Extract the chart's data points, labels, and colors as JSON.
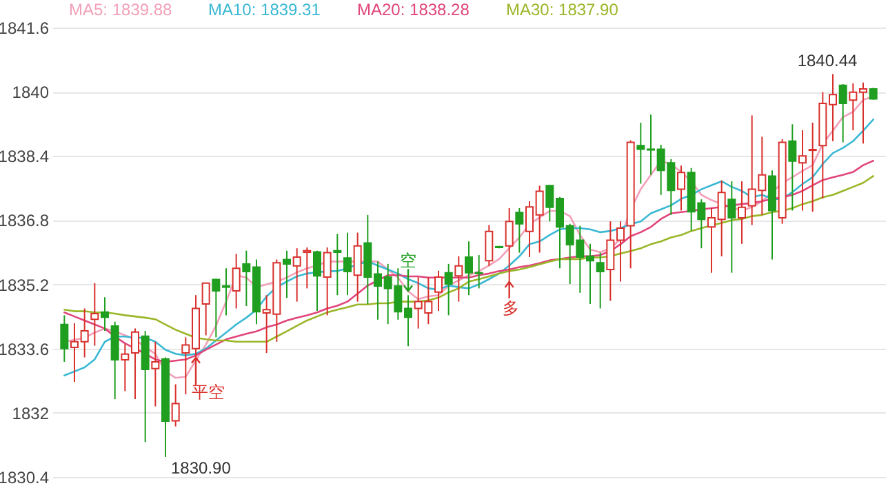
{
  "chart_data": {
    "type": "candlestick",
    "categories": [
      null,
      null,
      null,
      null,
      null,
      null,
      null,
      null,
      null,
      null,
      null,
      null,
      null,
      null,
      null,
      null,
      null,
      null,
      null,
      null,
      null,
      null,
      null,
      null,
      null,
      null,
      null,
      null,
      null,
      null,
      null,
      null,
      null,
      null,
      null,
      null,
      null,
      null,
      null,
      null,
      null,
      null,
      null,
      null,
      null,
      null,
      null,
      null,
      null,
      null,
      null,
      null,
      null,
      null,
      null,
      null,
      null,
      null,
      null,
      null,
      null,
      null,
      null,
      null,
      null,
      null,
      null,
      null,
      null,
      null,
      null,
      null,
      null,
      null,
      null,
      null,
      null,
      null,
      null,
      null,
      null
    ],
    "ohlc": [
      [
        1834.2,
        1834.43,
        1833.27,
        1833.6
      ],
      [
        1833.63,
        1834.23,
        1832.77,
        1833.77
      ],
      [
        1833.77,
        1834.6,
        1833.38,
        1834.04
      ],
      [
        1834.33,
        1835.23,
        1833.67,
        1834.47
      ],
      [
        1834.51,
        1834.88,
        1834.04,
        1834.38
      ],
      [
        1834.16,
        1834.27,
        1832.34,
        1833.32
      ],
      [
        1833.32,
        1833.71,
        1832.54,
        1833.46
      ],
      [
        1833.49,
        1834.1,
        1832.34,
        1834.01
      ],
      [
        1833.91,
        1834.04,
        1831.27,
        1833.08
      ],
      [
        1833.1,
        1833.77,
        1832.16,
        1833.27
      ],
      [
        1833.34,
        1833.38,
        1830.9,
        1831.79
      ],
      [
        1831.8,
        1832.71,
        1831.66,
        1832.23
      ],
      [
        1833.49,
        1833.88,
        1832.46,
        1833.69
      ],
      [
        1833.6,
        1834.93,
        1832.93,
        1834.6
      ],
      [
        1834.71,
        1835.23,
        1833.93,
        1835.23
      ],
      [
        1835.32,
        1835.34,
        1833.88,
        1835.04
      ],
      [
        1835.16,
        1835.6,
        1834.43,
        1835.13
      ],
      [
        1835.04,
        1835.96,
        1834.6,
        1835.6
      ],
      [
        1835.71,
        1836.04,
        1834.66,
        1835.52
      ],
      [
        1835.63,
        1835.82,
        1834.21,
        1834.52
      ],
      [
        1834.49,
        1834.93,
        1833.49,
        1834.57
      ],
      [
        1834.46,
        1835.82,
        1833.77,
        1835.74
      ],
      [
        1835.82,
        1836.04,
        1834.86,
        1835.71
      ],
      [
        1835.66,
        1836.1,
        1834.77,
        1835.88
      ],
      [
        1836.0,
        1836.12,
        1835.1,
        1836.04
      ],
      [
        1836.01,
        1836.04,
        1834.54,
        1835.41
      ],
      [
        1835.38,
        1836.12,
        1834.43,
        1835.99
      ],
      [
        1836.04,
        1836.46,
        1834.93,
        1836.0
      ],
      [
        1835.86,
        1836.49,
        1834.93,
        1835.52
      ],
      [
        1835.43,
        1836.49,
        1834.77,
        1836.16
      ],
      [
        1836.23,
        1836.93,
        1834.71,
        1835.38
      ],
      [
        1835.46,
        1835.77,
        1834.32,
        1835.16
      ],
      [
        1835.38,
        1835.71,
        1834.21,
        1835.1
      ],
      [
        1835.16,
        1835.6,
        1834.32,
        1834.52
      ],
      [
        1834.6,
        1834.93,
        1833.66,
        1834.38
      ],
      [
        1834.6,
        1835.38,
        1834.1,
        1834.77
      ],
      [
        1834.49,
        1835.38,
        1834.21,
        1834.77
      ],
      [
        1835.01,
        1835.54,
        1834.54,
        1835.38
      ],
      [
        1835.49,
        1835.71,
        1834.43,
        1835.21
      ],
      [
        1835.41,
        1835.9,
        1834.77,
        1835.66
      ],
      [
        1835.88,
        1836.27,
        1834.93,
        1835.49
      ],
      [
        1835.49,
        1835.93,
        1835.1,
        1835.47
      ],
      [
        1835.79,
        1836.68,
        1835.66,
        1836.52
      ],
      [
        1836.14,
        1836.16,
        1836.1,
        1836.12
      ],
      [
        1836.16,
        1837.1,
        1835.16,
        1836.77
      ],
      [
        1836.99,
        1837.1,
        1835.99,
        1836.71
      ],
      [
        1836.52,
        1837.27,
        1835.88,
        1837.13
      ],
      [
        1836.93,
        1837.66,
        1835.99,
        1837.52
      ],
      [
        1837.66,
        1837.68,
        1836.77,
        1837.12
      ],
      [
        1837.34,
        1837.38,
        1835.6,
        1836.63
      ],
      [
        1836.66,
        1836.71,
        1835.21,
        1836.19
      ],
      [
        1836.3,
        1836.66,
        1834.99,
        1835.88
      ],
      [
        1835.9,
        1836.21,
        1834.71,
        1835.79
      ],
      [
        1835.74,
        1835.99,
        1834.6,
        1835.52
      ],
      [
        1835.57,
        1836.77,
        1834.79,
        1836.3
      ],
      [
        1836.3,
        1836.77,
        1835.27,
        1836.6
      ],
      [
        1836.66,
        1838.79,
        1835.6,
        1838.74
      ],
      [
        1838.66,
        1839.23,
        1837.71,
        1838.57
      ],
      [
        1838.57,
        1839.43,
        1837.93,
        1838.55
      ],
      [
        1838.57,
        1838.68,
        1837.43,
        1838.04
      ],
      [
        1838.23,
        1838.32,
        1836.93,
        1837.54
      ],
      [
        1837.57,
        1838.16,
        1837.04,
        1837.99
      ],
      [
        1837.99,
        1838.1,
        1836.54,
        1837.01
      ],
      [
        1837.23,
        1837.32,
        1836.1,
        1836.82
      ],
      [
        1836.63,
        1837.1,
        1835.49,
        1836.86
      ],
      [
        1836.82,
        1837.79,
        1835.9,
        1837.49
      ],
      [
        1837.32,
        1837.77,
        1835.49,
        1836.86
      ],
      [
        1836.86,
        1837.77,
        1836.21,
        1837.12
      ],
      [
        1837.16,
        1839.41,
        1836.68,
        1837.57
      ],
      [
        1837.54,
        1838.88,
        1836.93,
        1837.93
      ],
      [
        1837.9,
        1838.04,
        1835.82,
        1837.04
      ],
      [
        1836.86,
        1838.82,
        1836.71,
        1838.74
      ],
      [
        1838.77,
        1839.19,
        1837.04,
        1838.27
      ],
      [
        1838.23,
        1839.04,
        1837.04,
        1838.4
      ],
      [
        1838.54,
        1839.23,
        1837.01,
        1838.56
      ],
      [
        1838.66,
        1839.99,
        1837.34,
        1839.71
      ],
      [
        1839.68,
        1840.44,
        1838.77,
        1839.93
      ],
      [
        1840.16,
        1840.19,
        1838.74,
        1839.71
      ],
      [
        1839.79,
        1840.21,
        1839.04,
        1839.99
      ],
      [
        1839.99,
        1840.23,
        1838.71,
        1840.07
      ],
      [
        1840.07,
        1840.1,
        1839.8,
        1839.82
      ]
    ],
    "colors": [
      "#1f9e1f",
      "#d8302c",
      "#d8302c",
      "#d8302c",
      "#1f9e1f",
      "#1f9e1f",
      "#d8302c",
      "#d8302c",
      "#1f9e1f",
      "#d8302c",
      "#1f9e1f",
      "#d8302c",
      "#d8302c",
      "#d8302c",
      "#d8302c",
      "#1f9e1f",
      "#1f9e1f",
      "#d8302c",
      "#1f9e1f",
      "#1f9e1f",
      "#d8302c",
      "#d8302c",
      "#1f9e1f",
      "#d8302c",
      "#d8302c",
      "#1f9e1f",
      "#d8302c",
      "#1f9e1f",
      "#1f9e1f",
      "#d8302c",
      "#1f9e1f",
      "#1f9e1f",
      "#1f9e1f",
      "#1f9e1f",
      "#1f9e1f",
      "#d8302c",
      "#d8302c",
      "#d8302c",
      "#1f9e1f",
      "#d8302c",
      "#1f9e1f",
      "#1f9e1f",
      "#d8302c",
      "#1f9e1f",
      "#d8302c",
      "#1f9e1f",
      "#d8302c",
      "#d8302c",
      "#1f9e1f",
      "#1f9e1f",
      "#1f9e1f",
      "#1f9e1f",
      "#1f9e1f",
      "#1f9e1f",
      "#d8302c",
      "#d8302c",
      "#d8302c",
      "#1f9e1f",
      "#1f9e1f",
      "#1f9e1f",
      "#1f9e1f",
      "#d8302c",
      "#1f9e1f",
      "#1f9e1f",
      "#d8302c",
      "#d8302c",
      "#1f9e1f",
      "#d8302c",
      "#d8302c",
      "#d8302c",
      "#1f9e1f",
      "#d8302c",
      "#1f9e1f",
      "#d8302c",
      "#d8302c",
      "#d8302c",
      "#d8302c",
      "#1f9e1f",
      "#d8302c",
      "#d8302c",
      "#1f9e1f"
    ],
    "series": [
      {
        "name": "MA5: 1839.88",
        "color": "#f2a0b8",
        "type": "line",
        "values": [
          1833.77,
          1833.82,
          1833.87,
          1834.0,
          1834.1,
          1834.03,
          1833.93,
          1833.83,
          1833.63,
          1833.47,
          1833.03,
          1832.87,
          1832.9,
          1833.3,
          1833.7,
          1834.17,
          1834.77,
          1835.43,
          1835.37,
          1835.13,
          1835.2,
          1835.27,
          1835.37,
          1835.5,
          1835.6,
          1835.67,
          1835.77,
          1835.77,
          1835.77,
          1835.77,
          1835.77,
          1835.77,
          1835.57,
          1835.37,
          1835.03,
          1834.83,
          1834.9,
          1834.93,
          1835.17,
          1835.3,
          1835.43,
          1835.53,
          1835.67,
          1835.83,
          1836.1,
          1836.37,
          1836.7,
          1836.87,
          1837.03,
          1837.03,
          1836.9,
          1836.43,
          1836.07,
          1836.0,
          1836.1,
          1836.33,
          1837.07,
          1837.57,
          1837.93,
          1838.27,
          1838.2,
          1838.0,
          1837.77,
          1837.43,
          1837.3,
          1837.2,
          1837.13,
          1837.03,
          1837.13,
          1837.27,
          1837.5,
          1837.73,
          1837.87,
          1838.03,
          1838.17,
          1838.7,
          1839.03,
          1839.37,
          1839.5,
          1839.8,
          1839.88
        ]
      },
      {
        "name": "MA10: 1839.31",
        "color": "#3ab8d4",
        "type": "line",
        "values": [
          1832.93,
          1833.03,
          1833.13,
          1833.33,
          1833.77,
          1833.9,
          1833.9,
          1833.87,
          1833.87,
          1833.77,
          1833.57,
          1833.47,
          1833.43,
          1833.47,
          1833.6,
          1833.8,
          1834.0,
          1834.2,
          1834.37,
          1834.57,
          1834.9,
          1835.13,
          1835.27,
          1835.4,
          1835.47,
          1835.5,
          1835.53,
          1835.53,
          1835.6,
          1835.7,
          1835.77,
          1835.67,
          1835.57,
          1835.47,
          1835.33,
          1835.23,
          1835.1,
          1835.07,
          1835.17,
          1835.13,
          1835.1,
          1835.2,
          1835.33,
          1835.47,
          1835.67,
          1835.9,
          1836.2,
          1836.27,
          1836.43,
          1836.57,
          1836.6,
          1836.6,
          1836.57,
          1836.5,
          1836.53,
          1836.6,
          1836.7,
          1836.77,
          1836.97,
          1837.07,
          1837.17,
          1837.33,
          1837.43,
          1837.57,
          1837.67,
          1837.77,
          1837.63,
          1837.53,
          1837.37,
          1837.43,
          1837.33,
          1837.33,
          1837.5,
          1837.7,
          1837.87,
          1838.2,
          1838.47,
          1838.6,
          1838.77,
          1839.03,
          1839.31
        ]
      },
      {
        "name": "MA20: 1838.28",
        "color": "#e0457b",
        "type": "line",
        "values": [
          1834.5,
          1834.4,
          1834.3,
          1834.2,
          1834.1,
          1833.9,
          1833.73,
          1833.6,
          1833.47,
          1833.33,
          1833.27,
          1833.3,
          1833.33,
          1833.43,
          1833.57,
          1833.7,
          1833.83,
          1833.9,
          1833.97,
          1834.03,
          1834.13,
          1834.2,
          1834.3,
          1834.37,
          1834.43,
          1834.5,
          1834.6,
          1834.67,
          1834.77,
          1834.97,
          1835.17,
          1835.3,
          1835.43,
          1835.43,
          1835.4,
          1835.4,
          1835.37,
          1835.37,
          1835.37,
          1835.37,
          1835.37,
          1835.43,
          1835.47,
          1835.53,
          1835.57,
          1835.63,
          1835.67,
          1835.73,
          1835.8,
          1835.83,
          1835.87,
          1835.9,
          1835.9,
          1835.93,
          1836.03,
          1836.2,
          1836.4,
          1836.5,
          1836.63,
          1836.83,
          1836.97,
          1837.0,
          1837.03,
          1837.07,
          1837.1,
          1837.13,
          1837.17,
          1837.2,
          1837.23,
          1837.27,
          1837.33,
          1837.37,
          1837.43,
          1837.53,
          1837.67,
          1837.8,
          1837.87,
          1837.93,
          1838.0,
          1838.17,
          1838.28
        ]
      },
      {
        "name": "MA30: 1837.90",
        "color": "#9ab628",
        "type": "line",
        "values": [
          1834.57,
          1834.53,
          1834.53,
          1834.5,
          1834.5,
          1834.47,
          1834.43,
          1834.4,
          1834.37,
          1834.33,
          1834.2,
          1834.07,
          1833.97,
          1833.87,
          1833.83,
          1833.8,
          1833.8,
          1833.77,
          1833.77,
          1833.77,
          1833.77,
          1833.9,
          1834.03,
          1834.17,
          1834.3,
          1834.4,
          1834.5,
          1834.57,
          1834.63,
          1834.7,
          1834.7,
          1834.73,
          1834.73,
          1834.77,
          1834.77,
          1834.77,
          1834.8,
          1834.87,
          1835.0,
          1835.1,
          1835.27,
          1835.33,
          1835.4,
          1835.47,
          1835.53,
          1835.57,
          1835.63,
          1835.7,
          1835.77,
          1835.83,
          1835.83,
          1835.83,
          1835.87,
          1835.87,
          1835.9,
          1835.97,
          1836.03,
          1836.1,
          1836.2,
          1836.27,
          1836.37,
          1836.43,
          1836.53,
          1836.6,
          1836.67,
          1836.73,
          1836.8,
          1836.83,
          1836.9,
          1836.93,
          1837.0,
          1837.03,
          1837.1,
          1837.2,
          1837.27,
          1837.37,
          1837.43,
          1837.53,
          1837.63,
          1837.73,
          1837.9
        ]
      }
    ],
    "ylim": [
      1830.4,
      1841.6
    ],
    "yticks": [
      1830.4,
      1832,
      1833.6,
      1835.2,
      1836.8,
      1838.4,
      1840,
      1841.6
    ],
    "grid": "y",
    "legend": "top left",
    "annotations": [
      "1840.44",
      "1830.90",
      "平空",
      "空",
      "多"
    ]
  }
}
